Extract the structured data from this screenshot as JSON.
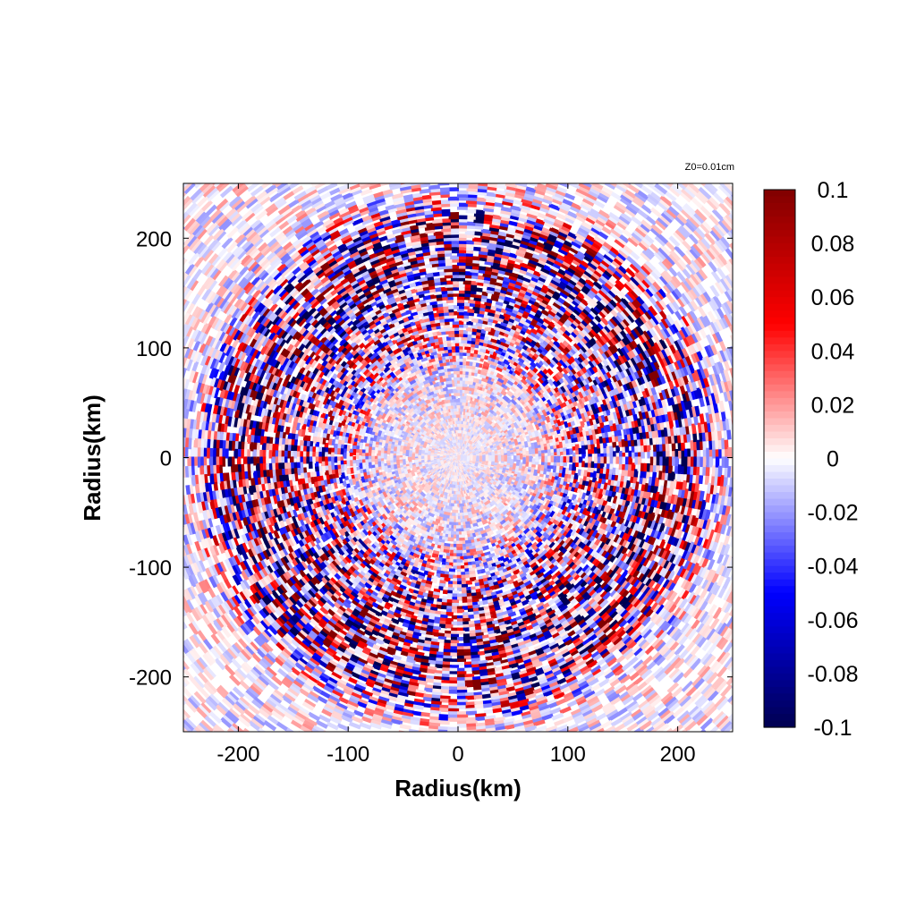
{
  "chart_data": {
    "type": "heatmap",
    "title": "",
    "annotation": "Z0=0.01cm",
    "xlabel": "Radius(km)",
    "ylabel": "Radius(km)",
    "xlim": [
      -250,
      250
    ],
    "ylim": [
      -250,
      250
    ],
    "x_ticks": [
      -200,
      -100,
      0,
      100,
      200
    ],
    "y_ticks": [
      -200,
      -100,
      0,
      100,
      200
    ],
    "x_tick_labels": [
      "-200",
      "-100",
      "0",
      "100",
      "200"
    ],
    "y_tick_labels": [
      "-200",
      "-100",
      "0",
      "100",
      "200"
    ],
    "grid": false,
    "colorbar": {
      "range": [
        -0.1,
        0.1
      ],
      "ticks": [
        0.1,
        0.08,
        0.06,
        0.04,
        0.02,
        0,
        -0.02,
        -0.04,
        -0.06,
        -0.08,
        -0.1
      ],
      "tick_labels": [
        "0.1",
        "0.08",
        "0.06",
        "0.04",
        "0.02",
        "0",
        "-0.02",
        "-0.04",
        "-0.06",
        "-0.08",
        "-0.1"
      ],
      "colormap": [
        "#000050",
        "#0000ff",
        "#ffffff",
        "#ff0000",
        "#800000"
      ],
      "placement": "right"
    },
    "field_description_rings_km": [
      {
        "radius": 120,
        "amplitude": 0.05
      },
      {
        "radius": 170,
        "amplitude": 0.09
      },
      {
        "radius": 210,
        "amplitude": 0.07
      }
    ]
  }
}
